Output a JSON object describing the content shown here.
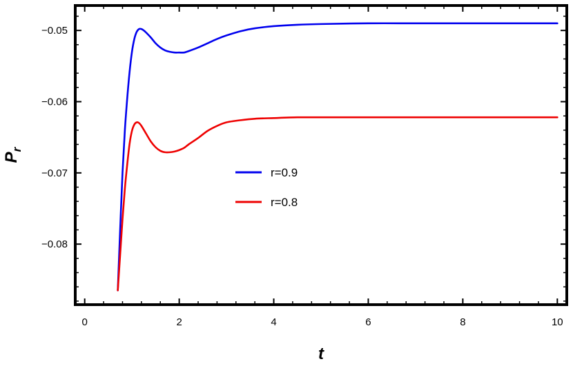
{
  "chart_data": {
    "type": "line",
    "xlabel": "t",
    "ylabel": "P",
    "ylabel_sub": "r",
    "xlim": [
      -0.2,
      10.2
    ],
    "ylim": [
      -0.0885,
      -0.0465
    ],
    "x_ticks": [
      0,
      2,
      4,
      6,
      8,
      10
    ],
    "x_tick_labels": [
      "0",
      "2",
      "4",
      "6",
      "8",
      "10"
    ],
    "y_ticks": [
      -0.05,
      -0.06,
      -0.07,
      -0.08
    ],
    "y_tick_labels": [
      "−0.05",
      "−0.06",
      "−0.07",
      "−0.08"
    ],
    "legend_position": "center",
    "grid": false,
    "series": [
      {
        "name": "r=0.9",
        "color": "#0000ee",
        "x": [
          0.7,
          0.75,
          0.8,
          0.85,
          0.9,
          0.95,
          1.0,
          1.05,
          1.1,
          1.15,
          1.2,
          1.25,
          1.3,
          1.4,
          1.5,
          1.6,
          1.7,
          1.8,
          1.9,
          2.0,
          2.1,
          2.2,
          2.4,
          2.6,
          2.8,
          3.0,
          3.3,
          3.6,
          4.0,
          4.5,
          5.0,
          6.0,
          7.0,
          8.0,
          9.0,
          10.0
        ],
        "y": [
          -0.0865,
          -0.078,
          -0.07,
          -0.064,
          -0.0595,
          -0.0558,
          -0.053,
          -0.0512,
          -0.0502,
          -0.0498,
          -0.0498,
          -0.05,
          -0.0503,
          -0.051,
          -0.0518,
          -0.0524,
          -0.0528,
          -0.053,
          -0.0531,
          -0.0531,
          -0.0531,
          -0.0529,
          -0.0524,
          -0.0518,
          -0.0512,
          -0.0507,
          -0.0501,
          -0.0497,
          -0.0494,
          -0.0492,
          -0.0491,
          -0.049,
          -0.049,
          -0.049,
          -0.049,
          -0.049
        ]
      },
      {
        "name": "r=0.8",
        "color": "#ee0000",
        "x": [
          0.7,
          0.75,
          0.8,
          0.85,
          0.9,
          0.95,
          1.0,
          1.05,
          1.1,
          1.15,
          1.2,
          1.3,
          1.4,
          1.5,
          1.6,
          1.7,
          1.8,
          1.9,
          2.0,
          2.1,
          2.2,
          2.4,
          2.6,
          2.8,
          3.0,
          3.3,
          3.6,
          4.0,
          4.5,
          5.0,
          6.0,
          7.0,
          8.0,
          9.0,
          10.0
        ],
        "y": [
          -0.0865,
          -0.0815,
          -0.0765,
          -0.0722,
          -0.0688,
          -0.0659,
          -0.0641,
          -0.0632,
          -0.0629,
          -0.063,
          -0.0634,
          -0.0645,
          -0.0656,
          -0.0664,
          -0.0669,
          -0.0671,
          -0.0671,
          -0.067,
          -0.0668,
          -0.0665,
          -0.066,
          -0.0651,
          -0.0641,
          -0.0634,
          -0.0629,
          -0.0626,
          -0.0624,
          -0.0623,
          -0.0622,
          -0.0622,
          -0.0622,
          -0.0622,
          -0.0622,
          -0.0622,
          -0.0622
        ]
      }
    ]
  }
}
